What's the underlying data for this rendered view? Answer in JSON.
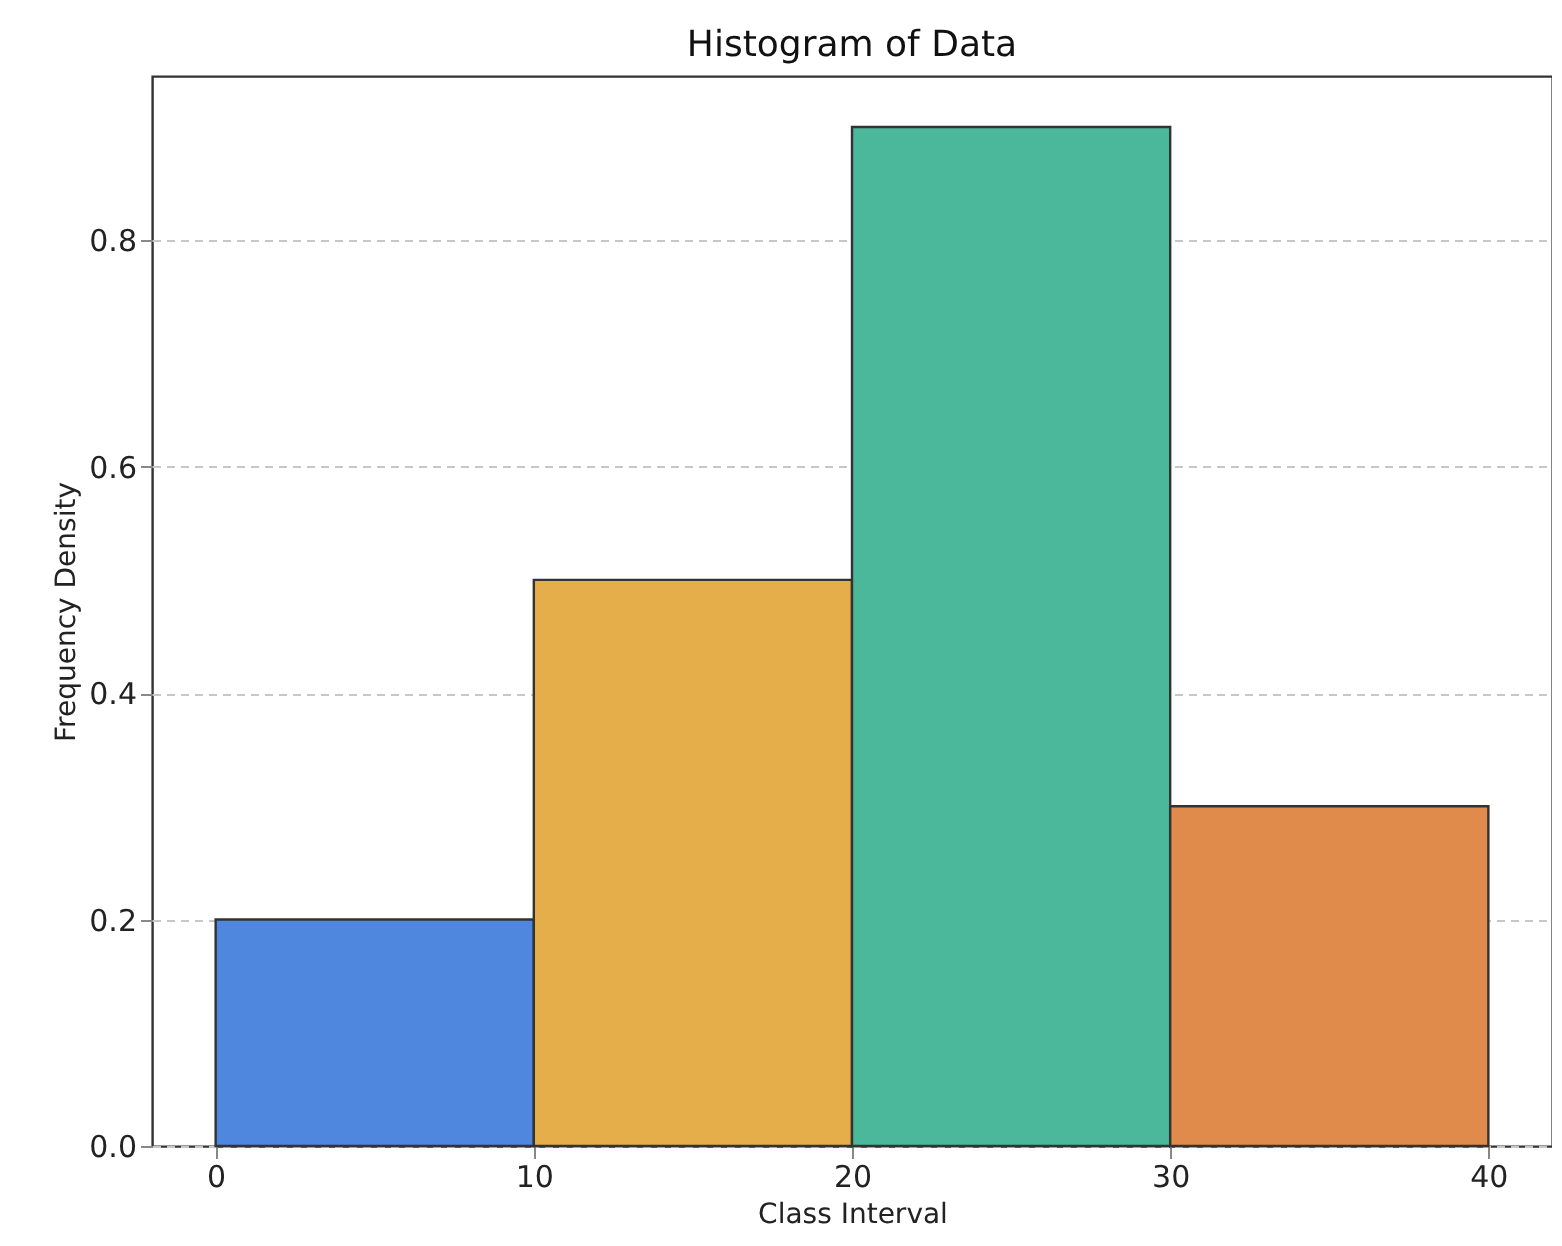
{
  "chart_data": {
    "type": "histogram",
    "title": "Histogram of Data",
    "xlabel": "Class Interval",
    "ylabel": "Frequency Density",
    "bins": [
      0,
      10,
      20,
      30,
      40
    ],
    "values": [
      0.2,
      0.5,
      0.9,
      0.3
    ],
    "colors": [
      "#4f86de",
      "#e5ae4b",
      "#4bb89b",
      "#e08b4b"
    ],
    "xlim": [
      -2,
      42
    ],
    "xticks": [
      0,
      10,
      20,
      30,
      40
    ],
    "ylim": [
      0,
      0.945
    ],
    "yticks": [
      {
        "value": 0,
        "label": "0.0"
      },
      0.2,
      0.4,
      0.6,
      0.8
    ],
    "grid": "y"
  }
}
